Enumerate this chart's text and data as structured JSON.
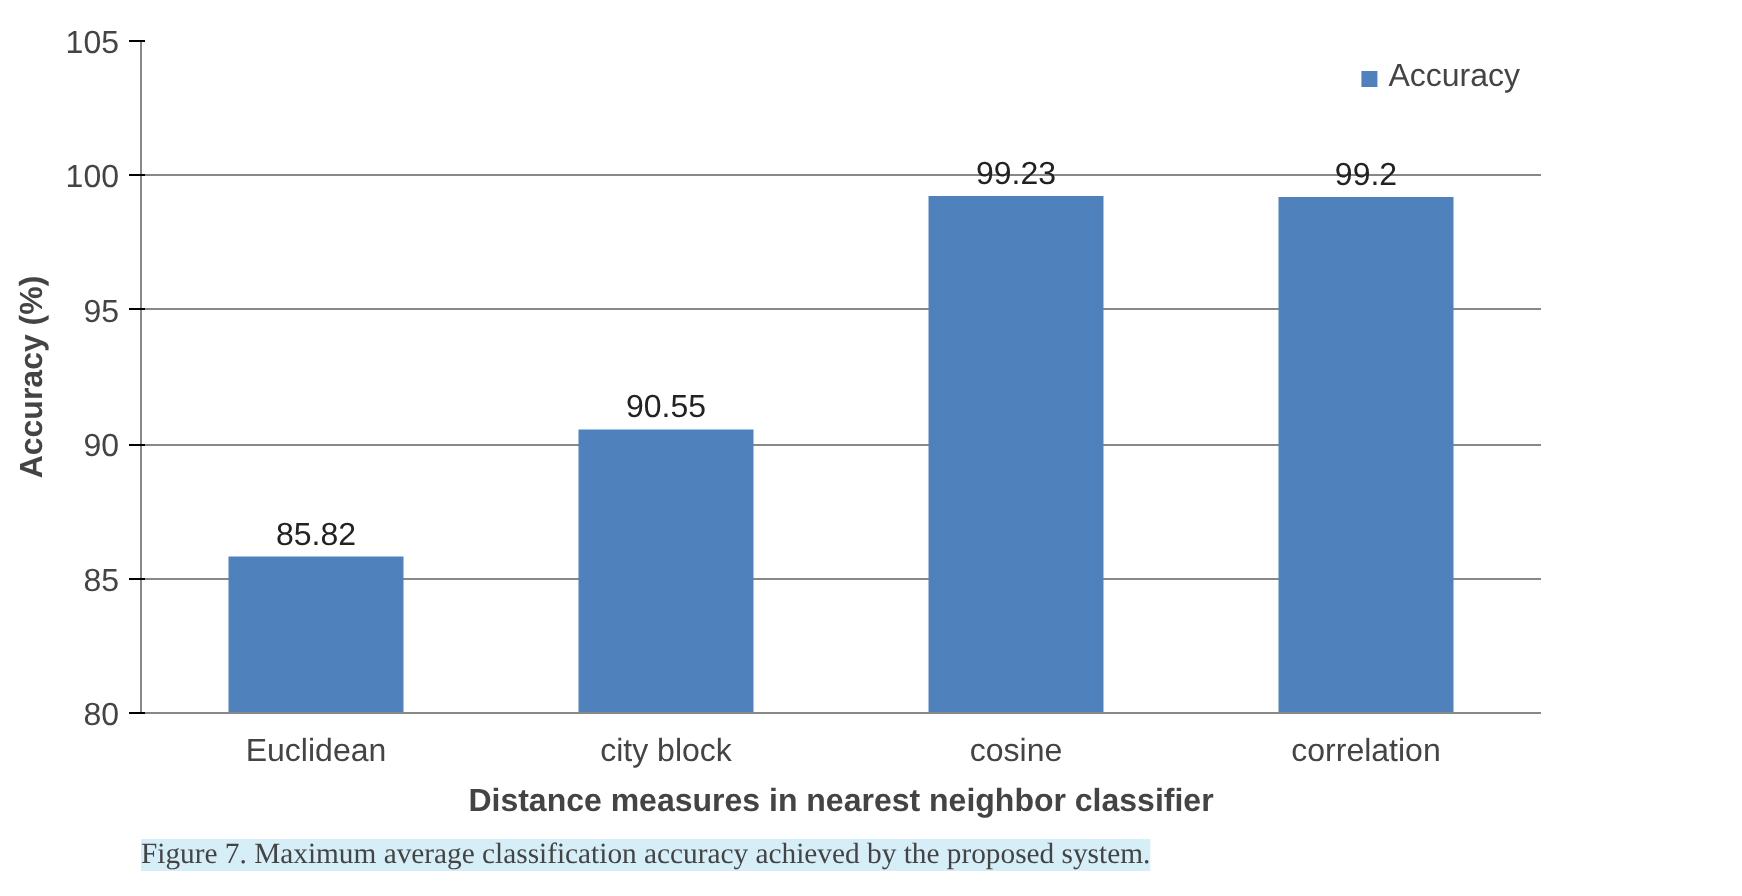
{
  "chart_data": {
    "type": "bar",
    "categories": [
      "Euclidean",
      "city block",
      "cosine",
      "correlation"
    ],
    "series": [
      {
        "name": "Accuracy",
        "color": "#4f81bd",
        "values": [
          85.82,
          90.55,
          99.23,
          99.2
        ]
      }
    ],
    "xlabel": "Distance measures in nearest neighbor classifier",
    "ylabel": "Accuracy (%)",
    "ylim": [
      80,
      105
    ],
    "yticks": [
      80,
      85,
      90,
      95,
      100,
      105
    ],
    "grid": "y",
    "legend": "top right",
    "data_labels": true,
    "annotations": [
      "Figure 7. Maximum average classification accuracy achieved by the proposed system."
    ]
  }
}
